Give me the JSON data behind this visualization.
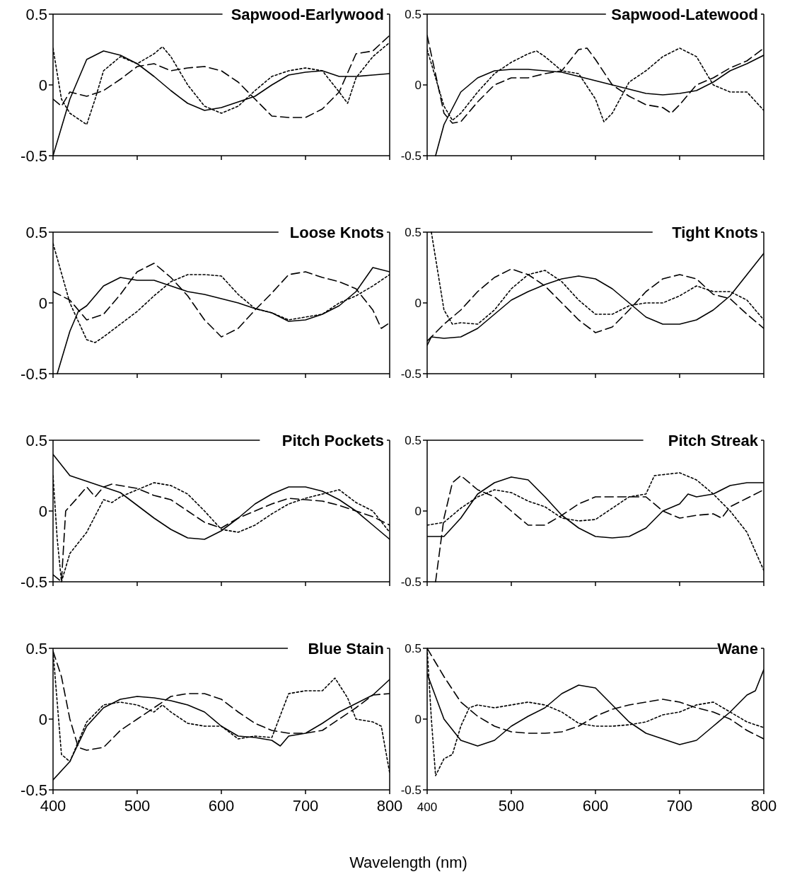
{
  "chart_data": [
    {
      "type": "line",
      "title": "Sapwood-Earlywood",
      "xlim": [
        400,
        800
      ],
      "xticks": [
        400,
        500,
        600,
        700,
        800
      ],
      "ylim": [
        -0.5,
        0.5
      ],
      "yticks": [
        -0.5,
        0,
        0.5
      ],
      "tick_labels": "y",
      "series": [
        {
          "color": "#000000",
          "line_style": "solid",
          "x": [
            400,
            420,
            440,
            460,
            480,
            500,
            520,
            540,
            560,
            580,
            600,
            620,
            640,
            660,
            680,
            700,
            720,
            740,
            760,
            780,
            800
          ],
          "values": [
            -0.5,
            -0.1,
            0.18,
            0.24,
            0.21,
            0.15,
            0.06,
            -0.04,
            -0.13,
            -0.18,
            -0.16,
            -0.12,
            -0.08,
            0.0,
            0.07,
            0.09,
            0.1,
            0.06,
            0.06,
            0.07,
            0.08
          ]
        },
        {
          "color": "#000000",
          "line_style": "dashed",
          "x": [
            400,
            410,
            420,
            440,
            460,
            480,
            500,
            520,
            540,
            560,
            580,
            600,
            620,
            640,
            660,
            680,
            700,
            720,
            740,
            760,
            780,
            800
          ],
          "values": [
            -0.1,
            -0.15,
            -0.05,
            -0.08,
            -0.04,
            0.04,
            0.13,
            0.15,
            0.1,
            0.12,
            0.13,
            0.1,
            0.02,
            -0.1,
            -0.22,
            -0.23,
            -0.23,
            -0.17,
            -0.05,
            0.22,
            0.24,
            0.35
          ]
        },
        {
          "color": "#000000",
          "line_style": "dotted",
          "x": [
            400,
            410,
            420,
            440,
            450,
            460,
            480,
            500,
            520,
            530,
            540,
            560,
            580,
            600,
            620,
            640,
            660,
            680,
            700,
            720,
            740,
            750,
            760,
            780,
            800
          ],
          "values": [
            0.26,
            -0.1,
            -0.2,
            -0.28,
            -0.1,
            0.1,
            0.2,
            0.15,
            0.22,
            0.27,
            0.2,
            0.0,
            -0.15,
            -0.2,
            -0.15,
            -0.04,
            0.06,
            0.1,
            0.12,
            0.1,
            -0.05,
            -0.13,
            0.05,
            0.2,
            0.3
          ]
        }
      ]
    },
    {
      "type": "line",
      "title": "Sapwood-Latewood",
      "xlim": [
        400,
        800
      ],
      "xticks": [
        400,
        500,
        600,
        700,
        800
      ],
      "ylim": [
        -0.5,
        0.5
      ],
      "yticks": [
        -0.5,
        0,
        0.5
      ],
      "tick_labels": "y",
      "series": [
        {
          "color": "#000000",
          "line_style": "solid",
          "x": [
            410,
            420,
            440,
            460,
            480,
            500,
            520,
            540,
            560,
            580,
            600,
            620,
            640,
            660,
            680,
            700,
            720,
            740,
            760,
            780,
            800
          ],
          "values": [
            -0.5,
            -0.28,
            -0.05,
            0.05,
            0.1,
            0.11,
            0.11,
            0.1,
            0.09,
            0.06,
            0.03,
            0.0,
            -0.03,
            -0.06,
            -0.07,
            -0.06,
            -0.04,
            0.02,
            0.1,
            0.15,
            0.21
          ]
        },
        {
          "color": "#000000",
          "line_style": "dashed",
          "x": [
            400,
            420,
            430,
            440,
            460,
            480,
            500,
            520,
            540,
            560,
            580,
            590,
            600,
            620,
            640,
            660,
            680,
            690,
            700,
            720,
            740,
            760,
            780,
            800
          ],
          "values": [
            0.35,
            -0.2,
            -0.27,
            -0.26,
            -0.12,
            0.0,
            0.05,
            0.05,
            0.08,
            0.1,
            0.25,
            0.26,
            0.18,
            0.0,
            -0.08,
            -0.14,
            -0.16,
            -0.2,
            -0.14,
            0.0,
            0.05,
            0.12,
            0.17,
            0.26
          ]
        },
        {
          "color": "#000000",
          "line_style": "dotted",
          "x": [
            400,
            420,
            430,
            440,
            460,
            480,
            500,
            520,
            530,
            540,
            560,
            580,
            600,
            610,
            620,
            640,
            660,
            680,
            700,
            720,
            740,
            760,
            780,
            800
          ],
          "values": [
            0.25,
            -0.15,
            -0.25,
            -0.2,
            -0.05,
            0.08,
            0.16,
            0.22,
            0.24,
            0.2,
            0.1,
            0.08,
            -0.1,
            -0.26,
            -0.2,
            0.02,
            0.1,
            0.2,
            0.26,
            0.2,
            0.0,
            -0.05,
            -0.05,
            -0.18
          ]
        }
      ]
    },
    {
      "type": "line",
      "title": "Loose Knots",
      "xlim": [
        400,
        800
      ],
      "xticks": [
        400,
        500,
        600,
        700,
        800
      ],
      "ylim": [
        -0.5,
        0.5
      ],
      "yticks": [
        -0.5,
        0,
        0.5
      ],
      "tick_labels": "y",
      "series": [
        {
          "color": "#000000",
          "line_style": "solid",
          "x": [
            405,
            420,
            430,
            440,
            460,
            480,
            500,
            520,
            540,
            560,
            580,
            600,
            620,
            640,
            660,
            680,
            700,
            720,
            740,
            760,
            780,
            800
          ],
          "values": [
            -0.5,
            -0.2,
            -0.06,
            -0.02,
            0.12,
            0.18,
            0.16,
            0.16,
            0.12,
            0.08,
            0.06,
            0.03,
            0.0,
            -0.04,
            -0.07,
            -0.13,
            -0.12,
            -0.08,
            -0.02,
            0.08,
            0.25,
            0.22
          ]
        },
        {
          "color": "#000000",
          "line_style": "dashed",
          "x": [
            400,
            420,
            440,
            460,
            480,
            500,
            520,
            540,
            560,
            580,
            600,
            620,
            640,
            660,
            680,
            700,
            720,
            740,
            760,
            780,
            790,
            800
          ],
          "values": [
            0.08,
            0.02,
            -0.12,
            -0.08,
            0.06,
            0.22,
            0.28,
            0.18,
            0.05,
            -0.12,
            -0.24,
            -0.18,
            -0.05,
            0.07,
            0.2,
            0.22,
            0.18,
            0.15,
            0.1,
            -0.05,
            -0.18,
            -0.14
          ]
        },
        {
          "color": "#000000",
          "line_style": "dotted",
          "x": [
            400,
            420,
            440,
            450,
            460,
            480,
            500,
            520,
            540,
            560,
            580,
            600,
            620,
            640,
            660,
            680,
            700,
            720,
            740,
            760,
            780,
            800
          ],
          "values": [
            0.42,
            0.0,
            -0.26,
            -0.28,
            -0.24,
            -0.15,
            -0.06,
            0.05,
            0.15,
            0.2,
            0.2,
            0.19,
            0.06,
            -0.04,
            -0.07,
            -0.12,
            -0.1,
            -0.08,
            0.0,
            0.05,
            0.12,
            0.2
          ]
        }
      ]
    },
    {
      "type": "line",
      "title": "Tight Knots",
      "xlim": [
        400,
        800
      ],
      "xticks": [
        400,
        500,
        600,
        700,
        800
      ],
      "ylim": [
        -0.5,
        0.5
      ],
      "yticks": [
        -0.5,
        0,
        0.5
      ],
      "tick_labels": "y",
      "series": [
        {
          "color": "#000000",
          "line_style": "solid",
          "x": [
            400,
            405,
            420,
            440,
            460,
            480,
            500,
            520,
            540,
            560,
            580,
            600,
            620,
            640,
            660,
            680,
            700,
            720,
            740,
            760,
            780,
            800
          ],
          "values": [
            -0.3,
            -0.24,
            -0.25,
            -0.24,
            -0.18,
            -0.08,
            0.02,
            0.08,
            0.13,
            0.17,
            0.19,
            0.17,
            0.1,
            0.0,
            -0.1,
            -0.15,
            -0.15,
            -0.12,
            -0.05,
            0.05,
            0.2,
            0.35
          ]
        },
        {
          "color": "#000000",
          "line_style": "dashed",
          "x": [
            400,
            420,
            440,
            460,
            480,
            500,
            520,
            540,
            560,
            580,
            600,
            620,
            640,
            660,
            680,
            700,
            720,
            740,
            760,
            780,
            800
          ],
          "values": [
            -0.27,
            -0.15,
            -0.05,
            0.08,
            0.18,
            0.24,
            0.2,
            0.12,
            0.0,
            -0.12,
            -0.21,
            -0.17,
            -0.05,
            0.08,
            0.17,
            0.2,
            0.17,
            0.06,
            0.03,
            -0.08,
            -0.18
          ]
        },
        {
          "color": "#000000",
          "line_style": "dotted",
          "x": [
            405,
            420,
            430,
            440,
            460,
            480,
            500,
            520,
            540,
            560,
            580,
            600,
            620,
            640,
            660,
            680,
            700,
            720,
            740,
            760,
            780,
            800
          ],
          "values": [
            0.5,
            -0.05,
            -0.15,
            -0.14,
            -0.15,
            -0.05,
            0.1,
            0.2,
            0.23,
            0.15,
            0.02,
            -0.08,
            -0.08,
            -0.02,
            0.0,
            0.0,
            0.05,
            0.12,
            0.08,
            0.08,
            0.02,
            -0.12
          ]
        }
      ]
    },
    {
      "type": "line",
      "title": "Pitch Pockets",
      "xlim": [
        400,
        800
      ],
      "xticks": [
        400,
        500,
        600,
        700,
        800
      ],
      "ylim": [
        -0.5,
        0.5
      ],
      "yticks": [
        -0.5,
        0,
        0.5
      ],
      "tick_labels": "y",
      "series": [
        {
          "color": "#000000",
          "line_style": "solid",
          "x": [
            400,
            420,
            440,
            460,
            480,
            500,
            520,
            540,
            560,
            580,
            600,
            620,
            640,
            660,
            680,
            700,
            720,
            740,
            760,
            780,
            800
          ],
          "values": [
            0.4,
            0.25,
            0.21,
            0.17,
            0.13,
            0.04,
            -0.05,
            -0.13,
            -0.19,
            -0.2,
            -0.14,
            -0.05,
            0.05,
            0.12,
            0.17,
            0.17,
            0.14,
            0.08,
            0.0,
            -0.1,
            -0.2
          ]
        },
        {
          "color": "#000000",
          "line_style": "dashed",
          "x": [
            400,
            410,
            415,
            430,
            440,
            450,
            460,
            470,
            500,
            520,
            540,
            560,
            580,
            600,
            620,
            640,
            660,
            680,
            700,
            720,
            740,
            760,
            780,
            800
          ],
          "values": [
            -0.45,
            -0.5,
            0.0,
            0.1,
            0.17,
            0.1,
            0.17,
            0.19,
            0.16,
            0.11,
            0.08,
            0.0,
            -0.08,
            -0.12,
            -0.05,
            0.0,
            0.05,
            0.09,
            0.08,
            0.07,
            0.04,
            0.0,
            -0.04,
            -0.1
          ]
        },
        {
          "color": "#000000",
          "line_style": "dotted",
          "x": [
            400,
            405,
            410,
            420,
            440,
            460,
            470,
            480,
            500,
            520,
            540,
            560,
            580,
            600,
            620,
            640,
            660,
            680,
            700,
            720,
            740,
            760,
            780,
            800
          ],
          "values": [
            0.25,
            -0.2,
            -0.5,
            -0.3,
            -0.15,
            0.08,
            0.06,
            0.1,
            0.15,
            0.2,
            0.18,
            0.12,
            0.0,
            -0.13,
            -0.15,
            -0.1,
            -0.02,
            0.05,
            0.09,
            0.12,
            0.15,
            0.06,
            0.0,
            -0.15
          ]
        }
      ]
    },
    {
      "type": "line",
      "title": "Pitch Streak",
      "xlim": [
        400,
        800
      ],
      "xticks": [
        400,
        500,
        600,
        700,
        800
      ],
      "ylim": [
        -0.5,
        0.5
      ],
      "yticks": [
        -0.5,
        0,
        0.5
      ],
      "tick_labels": "y",
      "series": [
        {
          "color": "#000000",
          "line_style": "solid",
          "x": [
            400,
            420,
            440,
            460,
            480,
            500,
            520,
            540,
            560,
            580,
            600,
            620,
            640,
            660,
            680,
            700,
            710,
            720,
            740,
            760,
            780,
            800
          ],
          "values": [
            -0.18,
            -0.18,
            -0.05,
            0.12,
            0.2,
            0.24,
            0.22,
            0.1,
            -0.03,
            -0.12,
            -0.18,
            -0.19,
            -0.18,
            -0.12,
            0.0,
            0.05,
            0.12,
            0.1,
            0.12,
            0.18,
            0.2,
            0.2
          ]
        },
        {
          "color": "#000000",
          "line_style": "dashed",
          "x": [
            410,
            420,
            430,
            440,
            460,
            480,
            500,
            520,
            540,
            560,
            580,
            600,
            620,
            640,
            660,
            680,
            700,
            720,
            740,
            750,
            760,
            780,
            800
          ],
          "values": [
            -0.5,
            -0.05,
            0.2,
            0.25,
            0.15,
            0.1,
            0.0,
            -0.1,
            -0.1,
            -0.03,
            0.05,
            0.1,
            0.1,
            0.1,
            0.1,
            0.0,
            -0.05,
            -0.03,
            -0.02,
            -0.05,
            0.03,
            0.09,
            0.15
          ]
        },
        {
          "color": "#000000",
          "line_style": "dotted",
          "x": [
            400,
            420,
            440,
            460,
            480,
            500,
            520,
            540,
            560,
            580,
            600,
            620,
            640,
            660,
            670,
            700,
            720,
            740,
            760,
            780,
            800
          ],
          "values": [
            -0.1,
            -0.08,
            0.02,
            0.1,
            0.15,
            0.13,
            0.07,
            0.03,
            -0.05,
            -0.07,
            -0.06,
            0.02,
            0.1,
            0.12,
            0.25,
            0.27,
            0.22,
            0.12,
            0.0,
            -0.15,
            -0.42
          ]
        }
      ]
    },
    {
      "type": "line",
      "title": "Blue Stain",
      "xlabel": "Wavelength (nm)",
      "xlim": [
        400,
        800
      ],
      "xticks": [
        400,
        500,
        600,
        700,
        800
      ],
      "ylim": [
        -0.5,
        0.5
      ],
      "yticks": [
        -0.5,
        0,
        0.5
      ],
      "series": [
        {
          "color": "#000000",
          "line_style": "solid",
          "x": [
            400,
            420,
            440,
            460,
            480,
            500,
            520,
            540,
            560,
            580,
            600,
            620,
            640,
            660,
            670,
            680,
            700,
            720,
            740,
            760,
            780,
            800
          ],
          "values": [
            -0.43,
            -0.3,
            -0.05,
            0.08,
            0.14,
            0.16,
            0.15,
            0.13,
            0.1,
            0.05,
            -0.05,
            -0.12,
            -0.13,
            -0.15,
            -0.19,
            -0.12,
            -0.1,
            -0.03,
            0.05,
            0.11,
            0.17,
            0.28
          ]
        },
        {
          "color": "#000000",
          "line_style": "dashed",
          "x": [
            400,
            410,
            420,
            430,
            440,
            460,
            480,
            500,
            520,
            540,
            560,
            580,
            600,
            620,
            640,
            660,
            680,
            700,
            720,
            740,
            760,
            780,
            800
          ],
          "values": [
            0.48,
            0.3,
            0.0,
            -0.2,
            -0.22,
            -0.2,
            -0.08,
            0.0,
            0.08,
            0.16,
            0.18,
            0.18,
            0.14,
            0.05,
            -0.03,
            -0.08,
            -0.1,
            -0.1,
            -0.08,
            0.0,
            0.08,
            0.17,
            0.18
          ]
        },
        {
          "color": "#000000",
          "line_style": "dotted",
          "x": [
            400,
            410,
            420,
            440,
            460,
            480,
            500,
            520,
            530,
            540,
            560,
            580,
            600,
            620,
            640,
            660,
            680,
            700,
            720,
            735,
            750,
            760,
            780,
            790,
            800
          ],
          "values": [
            0.48,
            -0.25,
            -0.3,
            -0.02,
            0.1,
            0.12,
            0.1,
            0.05,
            0.1,
            0.05,
            -0.03,
            -0.05,
            -0.05,
            -0.14,
            -0.12,
            -0.13,
            0.18,
            0.2,
            0.2,
            0.29,
            0.15,
            0.0,
            -0.02,
            -0.05,
            -0.38
          ]
        }
      ]
    },
    {
      "type": "line",
      "title": "Wane",
      "xlim": [
        400,
        800
      ],
      "xticks": [
        400,
        500,
        600,
        700,
        800
      ],
      "ylim": [
        -0.5,
        0.5
      ],
      "yticks": [
        -0.5,
        0,
        0.5
      ],
      "series": [
        {
          "color": "#000000",
          "line_style": "solid",
          "x": [
            400,
            420,
            440,
            460,
            480,
            500,
            520,
            540,
            560,
            580,
            600,
            620,
            640,
            660,
            680,
            700,
            720,
            740,
            760,
            780,
            790,
            800
          ],
          "values": [
            0.32,
            0.0,
            -0.15,
            -0.19,
            -0.15,
            -0.05,
            0.02,
            0.08,
            0.18,
            0.24,
            0.22,
            0.1,
            -0.02,
            -0.1,
            -0.14,
            -0.18,
            -0.15,
            -0.05,
            0.05,
            0.17,
            0.2,
            0.35
          ]
        },
        {
          "color": "#000000",
          "line_style": "dashed",
          "x": [
            400,
            420,
            440,
            460,
            480,
            500,
            520,
            540,
            560,
            580,
            600,
            620,
            640,
            660,
            680,
            700,
            720,
            740,
            760,
            780,
            800
          ],
          "values": [
            0.5,
            0.3,
            0.12,
            0.02,
            -0.05,
            -0.09,
            -0.1,
            -0.1,
            -0.09,
            -0.05,
            0.02,
            0.07,
            0.1,
            0.12,
            0.14,
            0.12,
            0.08,
            0.05,
            0.0,
            -0.08,
            -0.14
          ]
        },
        {
          "color": "#000000",
          "line_style": "dotted",
          "x": [
            400,
            405,
            410,
            420,
            430,
            440,
            450,
            460,
            480,
            500,
            520,
            540,
            560,
            580,
            600,
            620,
            640,
            660,
            680,
            700,
            720,
            740,
            760,
            780,
            800
          ],
          "values": [
            0.5,
            0.0,
            -0.4,
            -0.28,
            -0.25,
            -0.05,
            0.08,
            0.1,
            0.08,
            0.1,
            0.12,
            0.1,
            0.05,
            -0.03,
            -0.05,
            -0.05,
            -0.04,
            -0.02,
            0.03,
            0.05,
            0.1,
            0.12,
            0.05,
            -0.02,
            -0.06
          ]
        }
      ]
    }
  ]
}
